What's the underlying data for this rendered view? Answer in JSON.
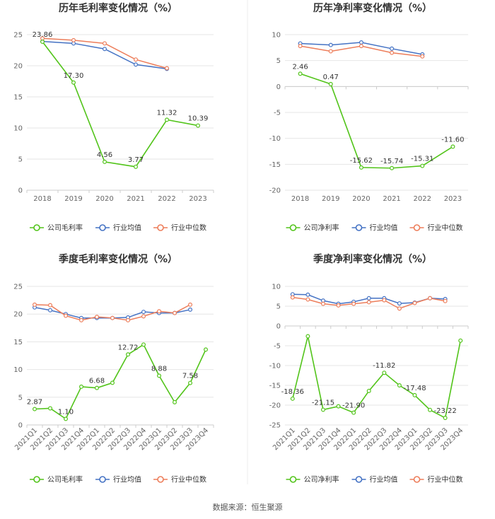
{
  "source": "数据来源：恒生聚源",
  "colors": {
    "company": "#52c41a",
    "avg": "#4472c4",
    "median": "#ed7d5a",
    "grid": "#e6e6e6",
    "axis": "#cccccc"
  },
  "chart_data": [
    {
      "type": "line",
      "title": "历年毛利率变化情况（%）",
      "categories": [
        "2018",
        "2019",
        "2020",
        "2021",
        "2022",
        "2023"
      ],
      "ylim": [
        0,
        25
      ],
      "yticks": [
        0,
        5,
        10,
        15,
        20,
        25
      ],
      "legend_position": "bottom",
      "series": [
        {
          "name": "公司毛利率",
          "key": "company",
          "values": [
            23.86,
            17.3,
            4.56,
            3.77,
            11.32,
            10.39
          ],
          "labels": [
            "23.86",
            "17.30",
            "4.56",
            "3.77",
            "11.32",
            "10.39"
          ]
        },
        {
          "name": "行业均值",
          "key": "avg",
          "values": [
            23.9,
            23.6,
            22.7,
            20.2,
            19.5,
            null
          ]
        },
        {
          "name": "行业中位数",
          "key": "median",
          "values": [
            24.4,
            24.1,
            23.6,
            21.0,
            19.6,
            null
          ]
        }
      ]
    },
    {
      "type": "line",
      "title": "历年净利率变化情况（%）",
      "categories": [
        "2018",
        "2019",
        "2020",
        "2021",
        "2022",
        "2023"
      ],
      "ylim": [
        -20,
        10
      ],
      "yticks": [
        -20,
        -15,
        -10,
        -5,
        0,
        5,
        10
      ],
      "legend_position": "bottom",
      "series": [
        {
          "name": "公司净利率",
          "key": "company",
          "values": [
            2.46,
            0.47,
            -15.62,
            -15.74,
            -15.31,
            -11.6
          ],
          "labels": [
            "2.46",
            "0.47",
            "-15.62",
            "-15.74",
            "-15.31",
            "-11.60"
          ]
        },
        {
          "name": "行业均值",
          "key": "avg",
          "values": [
            8.3,
            8.0,
            8.5,
            7.3,
            6.2,
            null
          ]
        },
        {
          "name": "行业中位数",
          "key": "median",
          "values": [
            7.8,
            6.8,
            7.8,
            6.5,
            5.8,
            null
          ]
        }
      ]
    },
    {
      "type": "line",
      "title": "季度毛利率变化情况（%）",
      "categories": [
        "2021Q1",
        "2021Q2",
        "2021Q3",
        "2021Q4",
        "2022Q1",
        "2022Q2",
        "2022Q3",
        "2022Q4",
        "2023Q1",
        "2023Q2",
        "2023Q3",
        "2023Q4"
      ],
      "ylim": [
        0,
        25
      ],
      "yticks": [
        0,
        5,
        10,
        15,
        20,
        25
      ],
      "legend_position": "bottom",
      "series": [
        {
          "name": "公司毛利率",
          "key": "company",
          "values": [
            2.87,
            3.0,
            1.1,
            6.9,
            6.68,
            7.6,
            12.72,
            14.5,
            8.88,
            4.1,
            7.58,
            13.6
          ],
          "labels": [
            "2.87",
            null,
            "1.10",
            null,
            "6.68",
            null,
            "12.72",
            null,
            "8.88",
            null,
            "7.58",
            null
          ]
        },
        {
          "name": "行业均值",
          "key": "avg",
          "values": [
            21.2,
            20.7,
            20.0,
            19.3,
            19.3,
            19.3,
            19.4,
            20.4,
            20.2,
            20.2,
            20.8,
            null
          ]
        },
        {
          "name": "行业中位数",
          "key": "median",
          "values": [
            21.7,
            21.6,
            19.7,
            18.9,
            19.5,
            19.3,
            18.9,
            19.6,
            20.5,
            20.2,
            21.7,
            null
          ]
        }
      ]
    },
    {
      "type": "line",
      "title": "季度净利率变化情况（%）",
      "categories": [
        "2021Q1",
        "2021Q2",
        "2021Q3",
        "2021Q4",
        "2022Q1",
        "2022Q2",
        "2022Q3",
        "2022Q4",
        "2023Q1",
        "2023Q2",
        "2023Q3",
        "2023Q4"
      ],
      "ylim": [
        -25,
        10
      ],
      "yticks": [
        -25,
        -20,
        -15,
        -10,
        -5,
        0,
        5,
        10
      ],
      "legend_position": "bottom",
      "series": [
        {
          "name": "公司净利率",
          "key": "company",
          "values": [
            -18.36,
            -2.6,
            -21.15,
            -20.3,
            -21.9,
            -16.4,
            -11.82,
            -15.0,
            -17.48,
            -21.2,
            -23.22,
            -3.7
          ],
          "labels": [
            "-18.36",
            null,
            "-21.15",
            null,
            "-21.90",
            null,
            "-11.82",
            null,
            "-17.48",
            null,
            "-23.22",
            null
          ]
        },
        {
          "name": "行业均值",
          "key": "avg",
          "values": [
            8.0,
            7.9,
            6.4,
            5.6,
            6.1,
            7.0,
            7.0,
            5.7,
            5.9,
            7.0,
            6.8,
            null
          ]
        },
        {
          "name": "行业中位数",
          "key": "median",
          "values": [
            7.2,
            6.7,
            5.6,
            5.2,
            5.6,
            6.0,
            6.5,
            4.4,
            5.8,
            7.0,
            6.3,
            null
          ]
        }
      ]
    }
  ]
}
